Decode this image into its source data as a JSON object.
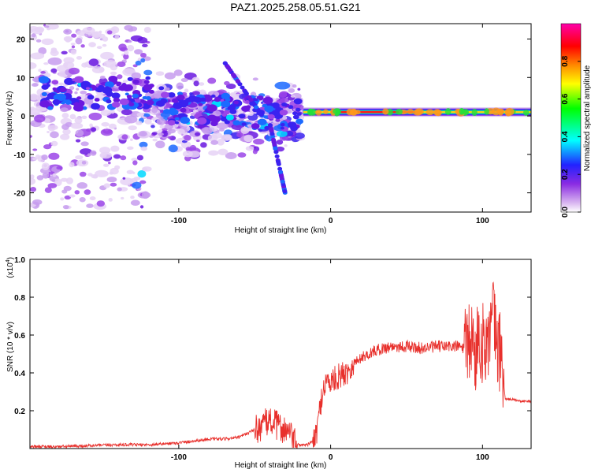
{
  "title": "PAZ1.2025.258.05.51.G21",
  "colors": {
    "snr_line": "#e8302c",
    "frame": "#000000"
  },
  "chart_data": [
    {
      "type": "heatmap",
      "xlabel": "Height of straight line (km)",
      "ylabel": "Frequency (Hz)",
      "xlim": [
        -198,
        132
      ],
      "ylim": [
        -25,
        24
      ],
      "xticks": [
        -100,
        0,
        100
      ],
      "yticks": [
        -20,
        -10,
        0,
        10,
        20
      ],
      "colorbar": {
        "label": "Normalized spectral amplitude",
        "range": [
          0,
          1
        ],
        "ticks": [
          "0.0",
          "0.2",
          "0.4",
          "0.6",
          "0.8"
        ],
        "colormap": [
          "#ffffff",
          "#d8b4f0",
          "#8a2be2",
          "#2222ff",
          "#00ffff",
          "#00ff00",
          "#ffff00",
          "#ff8800",
          "#ff0000",
          "#ff00aa"
        ]
      },
      "ridge": {
        "description_free": true,
        "frequency_hz": 1,
        "x_start": -18,
        "x_end": 132,
        "peak_x_range": [
          0,
          60
        ]
      }
    },
    {
      "type": "line",
      "xlabel": "Height of straight line (km)",
      "ylabel": "SNR (10 * v/v)",
      "multiplier": "(x10",
      "multiplier_exp": "4",
      "xlim": [
        -198,
        132
      ],
      "ylim": [
        0,
        1.0
      ],
      "xticks": [
        -100,
        0,
        100
      ],
      "yticks": [
        "0.2",
        "0.4",
        "0.6",
        "0.8",
        "1.0"
      ],
      "series": [
        {
          "x": [
            -198,
            -180,
            -160,
            -140,
            -120,
            -100,
            -80,
            -70,
            -60,
            -50,
            -45,
            -40,
            -35,
            -30,
            -25,
            -22,
            -20,
            -15,
            -10,
            -5,
            -3,
            0,
            5,
            10,
            15,
            20,
            30,
            40,
            50,
            60,
            70,
            80,
            85,
            90,
            93,
            95,
            97,
            100,
            103,
            105,
            107,
            110,
            112,
            115,
            120,
            125,
            132
          ],
          "y": [
            0.01,
            0.01,
            0.015,
            0.02,
            0.02,
            0.03,
            0.05,
            0.05,
            0.06,
            0.1,
            0.12,
            0.15,
            0.12,
            0.1,
            0.05,
            0.02,
            0.02,
            0.02,
            0.05,
            0.32,
            0.35,
            0.35,
            0.38,
            0.4,
            0.45,
            0.48,
            0.52,
            0.54,
            0.54,
            0.53,
            0.54,
            0.54,
            0.54,
            0.52,
            0.6,
            0.45,
            0.62,
            0.55,
            0.58,
            0.6,
            0.7,
            0.52,
            0.52,
            0.26,
            0.26,
            0.25,
            0.25
          ]
        }
      ]
    }
  ]
}
